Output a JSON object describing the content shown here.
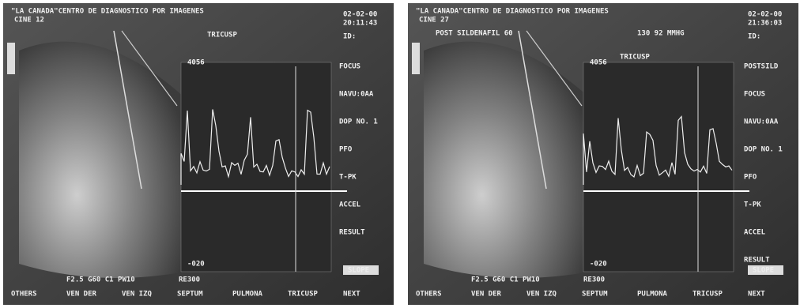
{
  "panels": [
    {
      "header": "\"LA CANADA\"CENTRO DE DIAGNOSTICO POR IMAGENES",
      "cine": "CINE 12",
      "date": "02-02-00",
      "time": "20:11:43",
      "id": "ID:",
      "note": "",
      "pressure": "",
      "mode": "TRICUSP",
      "scale_top": "4056",
      "scale_bottom": "-020",
      "side_labels": [
        "FOCUS",
        "NAVU:0AA",
        "DOP NO. 1",
        "PFO",
        "T-PK",
        "ACCEL",
        "RESULT"
      ],
      "status": "F2.5 G60 C1 PW10",
      "depth": "RE300",
      "slope": "SLOPE",
      "menu": [
        "OTHERS",
        "VEN DER",
        "VEN IZQ",
        "SEPTUM",
        "PULMONA",
        "TRICUSP",
        "NEXT"
      ]
    },
    {
      "header": "\"LA CANADA\"CENTRO DE DIAGNOSTICO POR IMAGENES",
      "cine": "CINE 27",
      "date": "02-02-00",
      "time": "21:36:03",
      "id": "ID:",
      "note": "POST SILDENAFIL 60",
      "pressure": "130 92 MMHG",
      "mode": "TRICUSP",
      "scale_top": "4056",
      "scale_bottom": "-020",
      "side_labels": [
        "POSTSILD",
        "FOCUS",
        "NAVU:0AA",
        "DOP NO. 1",
        "PFO",
        "T-PK",
        "ACCEL",
        "RESULT"
      ],
      "status": "F2.5 G60 C1 PW10",
      "depth": "RE300",
      "slope": "SLOPE",
      "menu": [
        "OTHERS",
        "VEN DER",
        "VEN IZQ",
        "SEPTUM",
        "PULMONA",
        "TRICUSP",
        "NEXT"
      ]
    }
  ]
}
